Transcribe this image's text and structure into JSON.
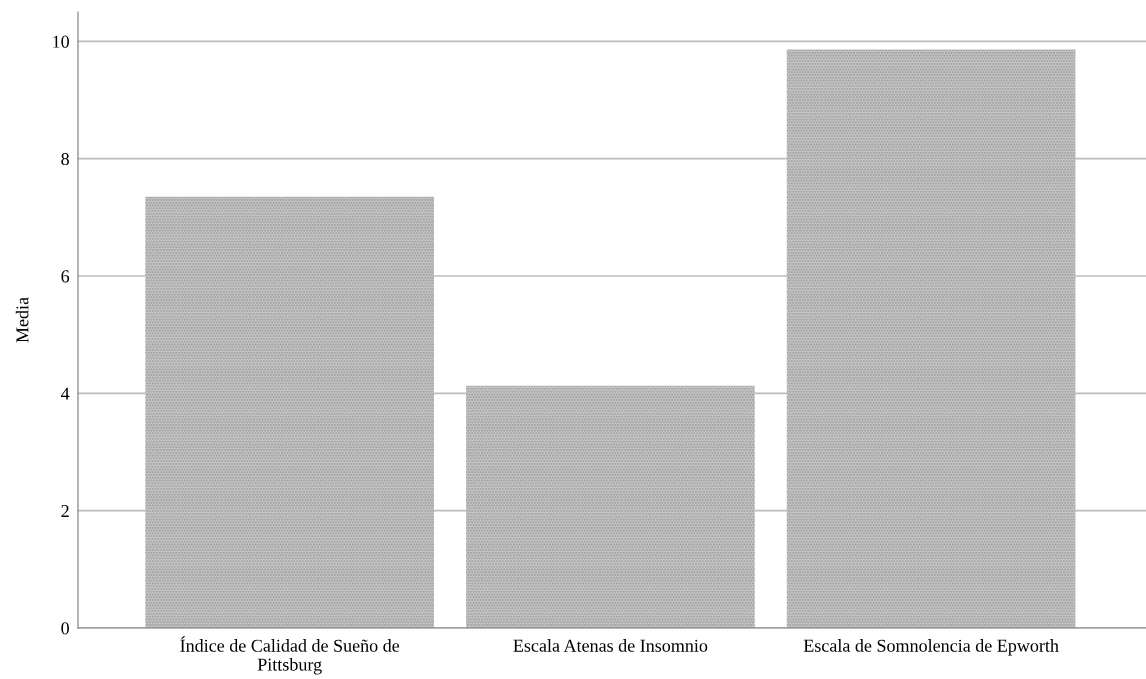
{
  "chart_data": {
    "type": "bar",
    "ylabel": "Media",
    "categories": [
      "Índice de Calidad de Sueño de\nPittsburg",
      "Escala Atenas de Insomnio",
      "Escala de Somnolencia de Epworth"
    ],
    "values": [
      7.35,
      4.13,
      9.86
    ],
    "color": "#c4c4c4",
    "ylim": [
      0,
      10.5
    ],
    "yticks": [
      0,
      2,
      4,
      6,
      8,
      10
    ],
    "grid": "y"
  }
}
